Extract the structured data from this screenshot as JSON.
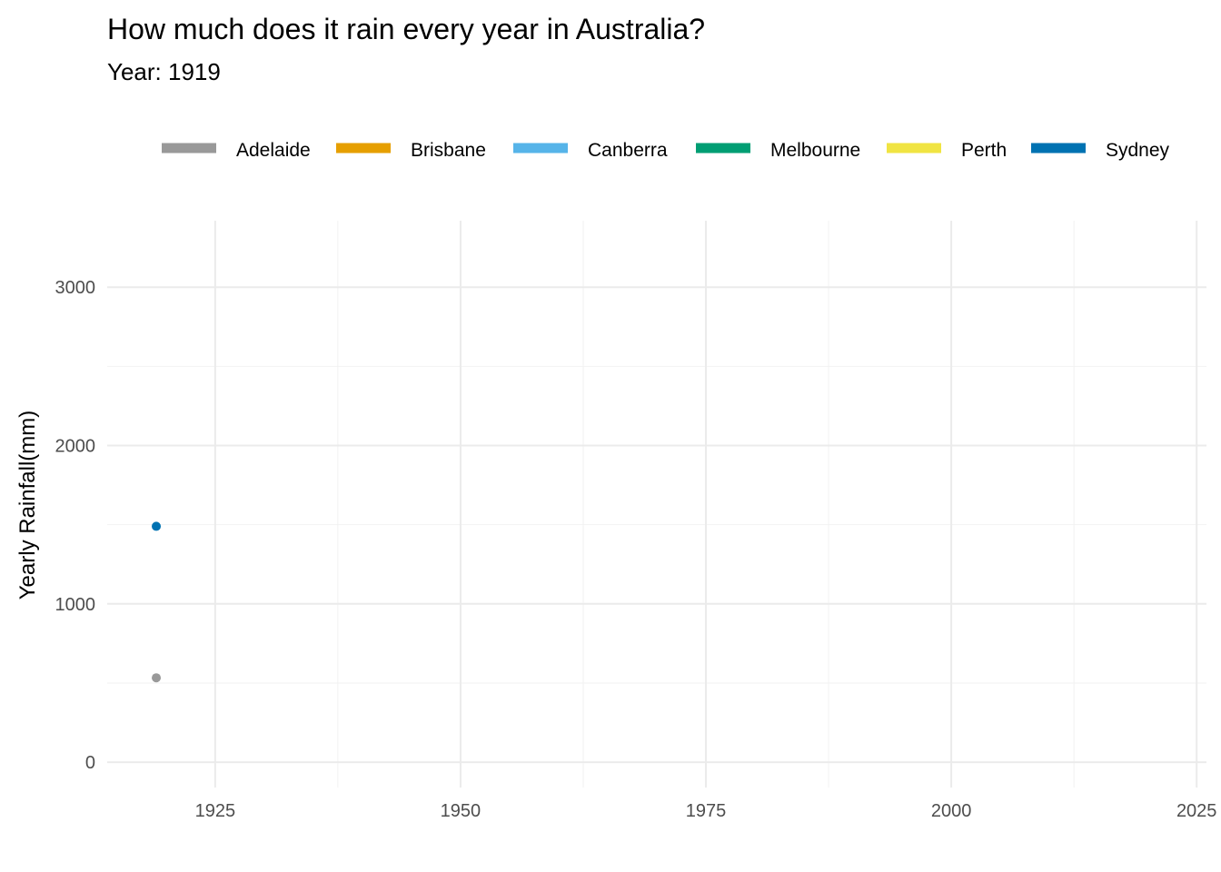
{
  "chart_data": {
    "type": "line",
    "title": "How much does it rain every year in Australia?",
    "subtitle": "Year: 1919",
    "xlabel": "",
    "ylabel": "Yearly Rainfall(mm)",
    "xlim": [
      1914,
      2026
    ],
    "ylim": [
      -160,
      3420
    ],
    "x_ticks": [
      1925,
      1950,
      1975,
      2000,
      2025
    ],
    "y_ticks": [
      0,
      1000,
      2000,
      3000
    ],
    "grid": true,
    "legend_position": "top",
    "series": [
      {
        "name": "Adelaide",
        "color": "#999999",
        "points": [
          {
            "x": 1919,
            "y": 533
          }
        ]
      },
      {
        "name": "Brisbane",
        "color": "#E69F00",
        "points": []
      },
      {
        "name": "Canberra",
        "color": "#56B4E9",
        "points": []
      },
      {
        "name": "Melbourne",
        "color": "#009E73",
        "points": []
      },
      {
        "name": "Perth",
        "color": "#F0E442",
        "points": []
      },
      {
        "name": "Sydney",
        "color": "#0072B2",
        "points": [
          {
            "x": 1919,
            "y": 1490
          }
        ]
      }
    ]
  }
}
